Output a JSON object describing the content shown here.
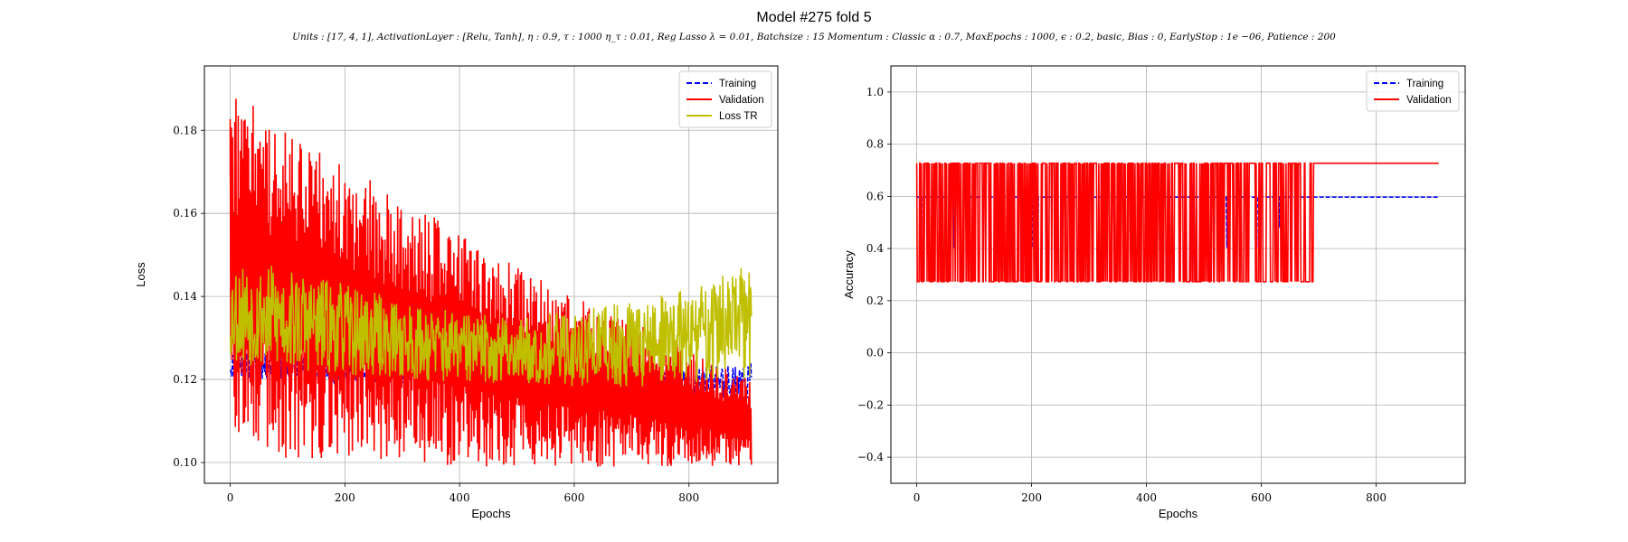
{
  "figure": {
    "title": "Model #275 fold 5",
    "subtitle": "Units : [17, 4, 1], ActivationLayer : [Relu, Tanh], η : 0.9, τ : 1000 η_τ : 0.01, Reg Lasso λ = 0.01, Batchsize : 15 Momentum : Classic α : 0.7, MaxEpochs : 1000, ϵ : 0.2, basic, Bias : 0, EarlyStop : 1e −06, Patience : 200"
  },
  "chart_data": [
    {
      "type": "line",
      "title": "",
      "xlabel": "Epochs",
      "ylabel": "Loss",
      "xlim": [
        -45,
        955
      ],
      "ylim": [
        0.095,
        0.1955
      ],
      "xticks": [
        0,
        200,
        400,
        600,
        800
      ],
      "xtick_labels": [
        "0",
        "200",
        "400",
        "600",
        "800"
      ],
      "yticks": [
        0.1,
        0.12,
        0.14,
        0.16,
        0.18
      ],
      "ytick_labels": [
        "0.10",
        "0.12",
        "0.14",
        "0.16",
        "0.18"
      ],
      "grid": true,
      "legend_position": "top-right",
      "n_epochs": 910,
      "series": [
        {
          "name": "Training",
          "color": "#0000ff",
          "style": "dashed",
          "envelope": {
            "x": [
              0,
              100,
              200,
              300,
              400,
              500,
              600,
              700,
              800,
              905
            ],
            "low": [
              0.12,
              0.12,
              0.119,
              0.119,
              0.118,
              0.118,
              0.117,
              0.117,
              0.116,
              0.115
            ],
            "high": [
              0.127,
              0.126,
              0.125,
              0.124,
              0.123,
              0.122,
              0.122,
              0.122,
              0.123,
              0.124
            ]
          }
        },
        {
          "name": "Validation",
          "color": "#ff0000",
          "style": "solid",
          "envelope": {
            "x": [
              0,
              100,
              200,
              300,
              400,
              500,
              600,
              700,
              800,
              905
            ],
            "low": [
              0.105,
              0.101,
              0.1,
              0.1,
              0.099,
              0.099,
              0.099,
              0.099,
              0.099,
              0.099
            ],
            "high": [
              0.19,
              0.18,
              0.172,
              0.163,
              0.156,
              0.147,
              0.14,
              0.135,
              0.127,
              0.12
            ]
          }
        },
        {
          "name": "Loss TR",
          "color": "#bfbf00",
          "style": "solid",
          "envelope": {
            "x": [
              0,
              100,
              200,
              300,
              400,
              500,
              600,
              700,
              800,
              905
            ],
            "low": [
              0.124,
              0.122,
              0.121,
              0.12,
              0.119,
              0.119,
              0.118,
              0.118,
              0.119,
              0.12
            ],
            "high": [
              0.149,
              0.147,
              0.143,
              0.139,
              0.136,
              0.135,
              0.137,
              0.139,
              0.142,
              0.148
            ]
          }
        }
      ]
    },
    {
      "type": "line",
      "title": "",
      "xlabel": "Epochs",
      "ylabel": "Accuracy",
      "xlim": [
        -45,
        955
      ],
      "ylim": [
        -0.5,
        1.1
      ],
      "xticks": [
        0,
        200,
        400,
        600,
        800
      ],
      "xtick_labels": [
        "0",
        "200",
        "400",
        "600",
        "800"
      ],
      "yticks": [
        -0.4,
        -0.2,
        0.0,
        0.2,
        0.4,
        0.6,
        0.8,
        1.0
      ],
      "ytick_labels": [
        "−0.4",
        "−0.2",
        "0.0",
        "0.2",
        "0.4",
        "0.6",
        "0.8",
        "1.0"
      ],
      "grid": true,
      "legend_position": "top-right",
      "n_epochs": 910,
      "series": [
        {
          "name": "Training",
          "color": "#0000ff",
          "style": "dashed",
          "levels": [
            0.597,
            0.403,
            0.48
          ],
          "final_value": 0.597
        },
        {
          "name": "Validation",
          "color": "#ff0000",
          "style": "solid",
          "levels": [
            0.727,
            0.273
          ],
          "oscillation_end_epoch": 690,
          "final_value": 0.727
        }
      ]
    }
  ]
}
